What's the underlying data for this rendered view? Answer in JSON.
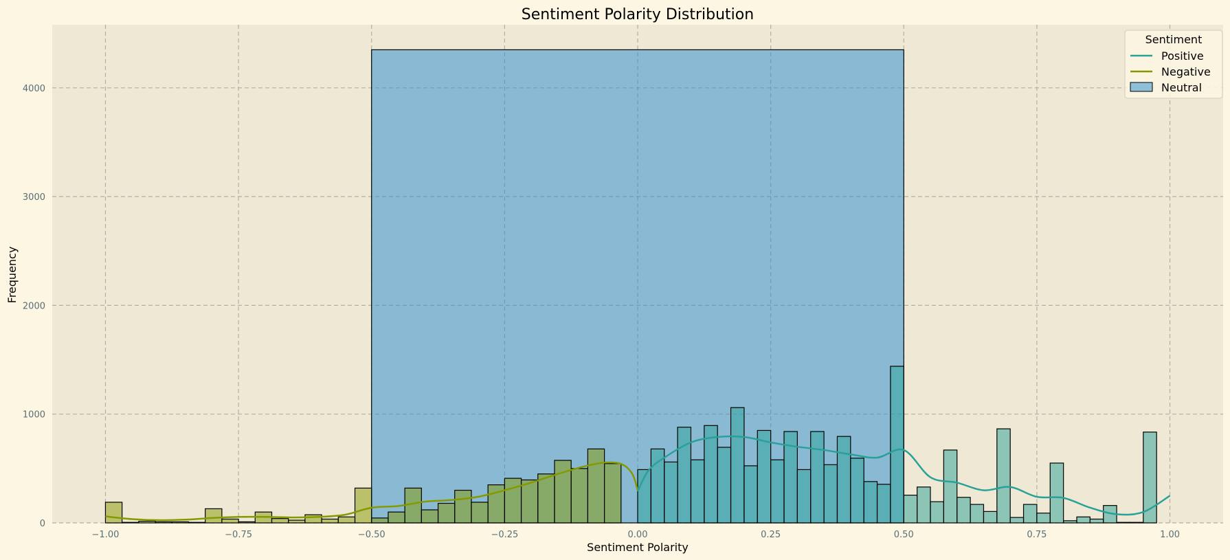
{
  "chart_data": {
    "type": "histogram",
    "title": "Sentiment Polarity Distribution",
    "xlabel": "Sentiment Polarity",
    "ylabel": "Frequency",
    "xlim": [
      -1.1,
      1.1
    ],
    "ylim": [
      0,
      4580
    ],
    "x_ticks": [
      -1.0,
      -0.75,
      -0.5,
      -0.25,
      0.0,
      0.25,
      0.5,
      0.75,
      1.0
    ],
    "x_tick_labels": [
      "−1.00",
      "−0.75",
      "−0.50",
      "−0.25",
      "0.00",
      "0.25",
      "0.50",
      "0.75",
      "1.00"
    ],
    "y_ticks": [
      0,
      1000,
      2000,
      3000,
      4000
    ],
    "y_tick_labels": [
      "0",
      "1000",
      "2000",
      "3000",
      "4000"
    ],
    "grid": true,
    "legend": {
      "title": "Sentiment",
      "placement": "top-right",
      "entries": [
        {
          "label": "Positive",
          "kind": "line"
        },
        {
          "label": "Negative",
          "kind": "line"
        },
        {
          "label": "Neutral",
          "kind": "patch"
        }
      ]
    },
    "colors": {
      "positive_fill": "#2aa198",
      "negative_fill": "#859900",
      "neutral_fill": "#268bd2",
      "positive_line": "#2aa198",
      "negative_line": "#859900",
      "plot_bg": "#eee8d5",
      "figure_bg": "#fdf6e3",
      "grid": "#b3b0a5",
      "edge": "#000000"
    },
    "series": [
      {
        "name": "Neutral",
        "bins": [
          {
            "x0": -0.5,
            "x1": 0.5,
            "count": 4350
          }
        ]
      },
      {
        "name": "Negative",
        "bin_width": 0.03125,
        "bin_start": -1.0,
        "counts": [
          190,
          5,
          15,
          10,
          10,
          5,
          130,
          35,
          10,
          100,
          40,
          25,
          75,
          35,
          55,
          320,
          45,
          100,
          320,
          120,
          180,
          300,
          190,
          350,
          410,
          395,
          450,
          575,
          500,
          680,
          545,
          0
        ],
        "kde": [
          [
            -1.0,
            60
          ],
          [
            -0.95,
            35
          ],
          [
            -0.9,
            25
          ],
          [
            -0.85,
            30
          ],
          [
            -0.8,
            45
          ],
          [
            -0.75,
            55
          ],
          [
            -0.7,
            55
          ],
          [
            -0.65,
            50
          ],
          [
            -0.6,
            55
          ],
          [
            -0.55,
            75
          ],
          [
            -0.5,
            140
          ],
          [
            -0.45,
            155
          ],
          [
            -0.4,
            195
          ],
          [
            -0.35,
            210
          ],
          [
            -0.3,
            240
          ],
          [
            -0.25,
            300
          ],
          [
            -0.2,
            370
          ],
          [
            -0.15,
            450
          ],
          [
            -0.1,
            520
          ],
          [
            -0.06,
            555
          ],
          [
            -0.03,
            540
          ],
          [
            -0.01,
            450
          ],
          [
            0.0,
            300
          ]
        ]
      },
      {
        "name": "Positive",
        "bin_width": 0.025,
        "bin_start": 0.0,
        "counts": [
          490,
          680,
          560,
          880,
          580,
          895,
          695,
          1060,
          525,
          850,
          580,
          840,
          490,
          840,
          535,
          795,
          595,
          380,
          355,
          1440,
          255,
          330,
          195,
          670,
          235,
          170,
          105,
          865,
          50,
          170,
          90,
          550,
          20,
          55,
          35,
          160,
          5,
          5,
          835
        ],
        "kde": [
          [
            0.0,
            290
          ],
          [
            0.02,
            480
          ],
          [
            0.05,
            600
          ],
          [
            0.1,
            740
          ],
          [
            0.15,
            790
          ],
          [
            0.2,
            790
          ],
          [
            0.25,
            740
          ],
          [
            0.3,
            700
          ],
          [
            0.35,
            670
          ],
          [
            0.4,
            630
          ],
          [
            0.45,
            600
          ],
          [
            0.5,
            670
          ],
          [
            0.55,
            420
          ],
          [
            0.6,
            370
          ],
          [
            0.65,
            300
          ],
          [
            0.7,
            330
          ],
          [
            0.75,
            240
          ],
          [
            0.8,
            230
          ],
          [
            0.85,
            140
          ],
          [
            0.9,
            80
          ],
          [
            0.95,
            100
          ],
          [
            1.0,
            250
          ]
        ]
      }
    ]
  }
}
